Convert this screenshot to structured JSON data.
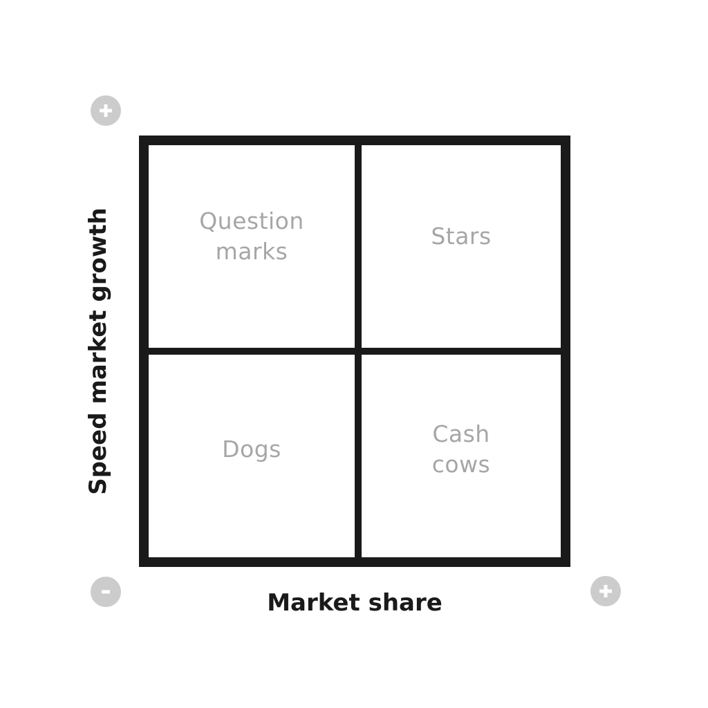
{
  "matrix": {
    "quadrants": {
      "top_left": [
        "Question",
        "marks"
      ],
      "top_right": [
        "Stars"
      ],
      "bottom_left": [
        "Dogs"
      ],
      "bottom_right": [
        "Cash",
        "cows"
      ]
    }
  },
  "axes": {
    "x_label": "Market share",
    "y_label": "Speed market growth"
  },
  "markers": {
    "y_axis_top": "plus-icon",
    "origin": "minus-icon",
    "x_axis_right": "plus-icon"
  },
  "colors": {
    "grid": "#1a1a1a",
    "quadrant_text": "#a6a6a6",
    "marker_fill": "#cccccc",
    "marker_symbol": "#ffffff"
  }
}
